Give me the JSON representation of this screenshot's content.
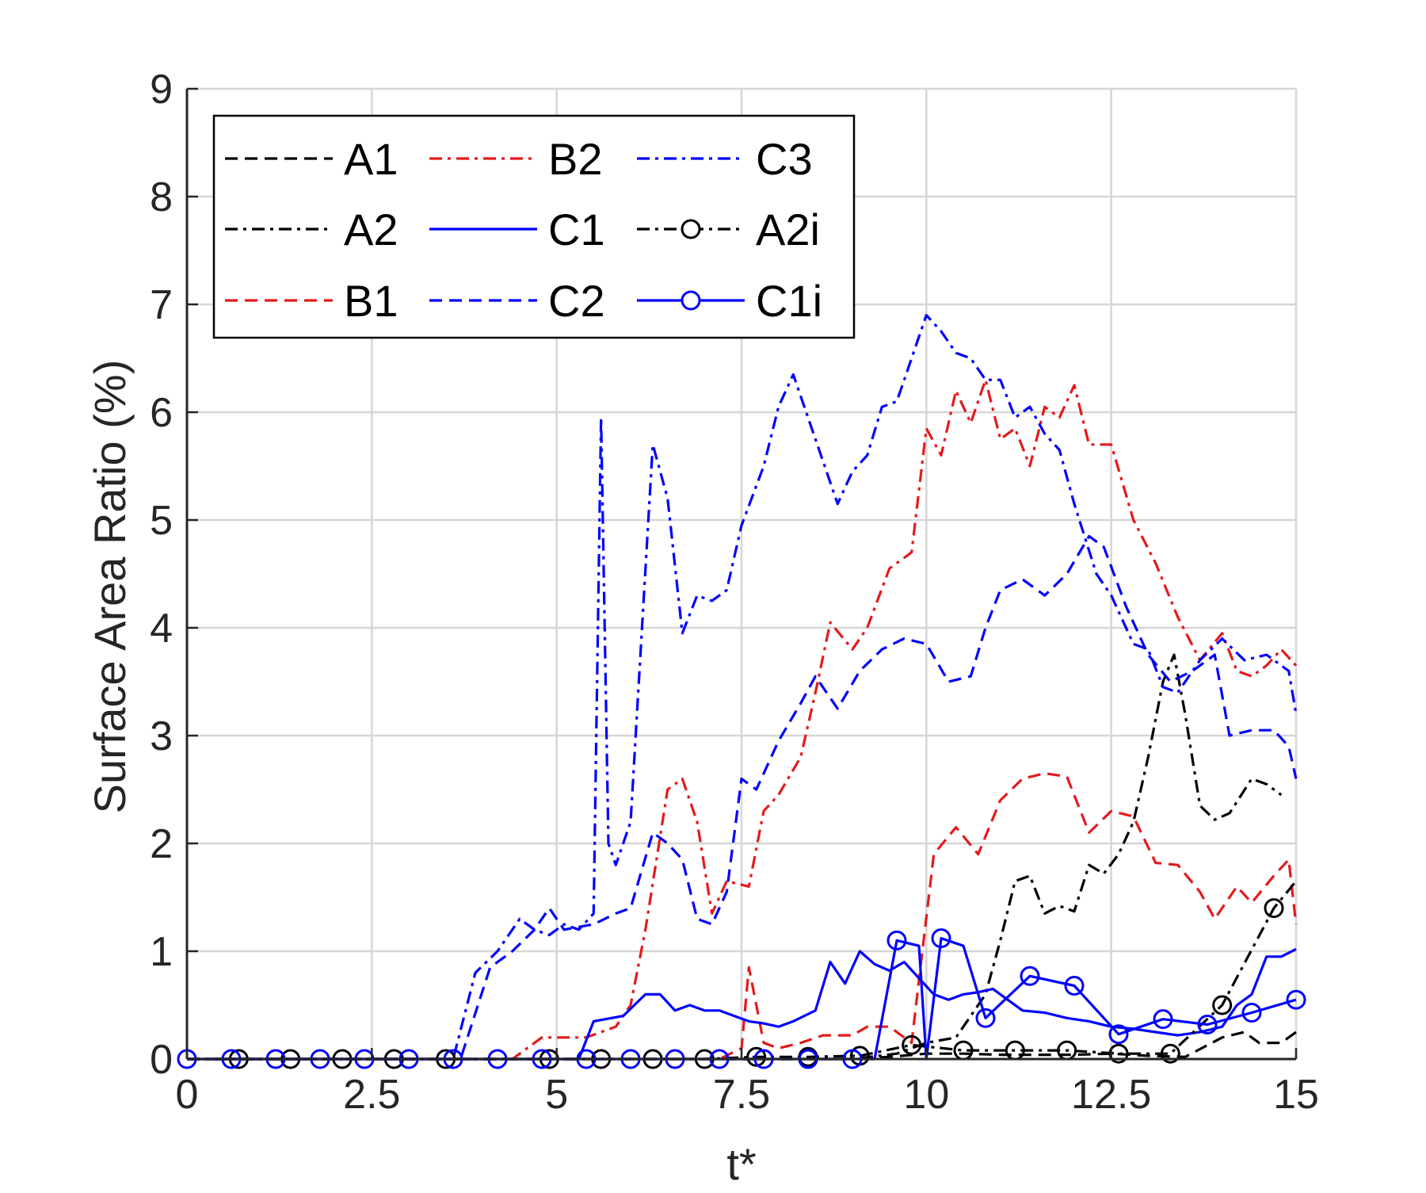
{
  "chart_data": {
    "type": "line",
    "title": "",
    "xlabel": "t*",
    "ylabel": "Surface Area Ratio (%)",
    "xlim": [
      0,
      15
    ],
    "ylim": [
      0,
      9
    ],
    "xticks": [
      "0",
      "2.5",
      "5",
      "7.5",
      "10",
      "12.5",
      "15"
    ],
    "yticks": [
      "0",
      "1",
      "2",
      "3",
      "4",
      "5",
      "6",
      "7",
      "8",
      "9"
    ],
    "grid": true,
    "legend": {
      "position": "top-left",
      "columns": 3
    },
    "series": [
      {
        "name": "A1",
        "color": "#000000",
        "dash": "dashed",
        "marker": "none",
        "x": [
          0,
          9,
          9.5,
          10,
          10.5,
          11,
          11.5,
          12,
          12.5,
          13,
          13.5,
          14,
          14.3,
          14.5,
          14.8,
          15
        ],
        "y": [
          0,
          0,
          0.02,
          0.05,
          0.05,
          0.04,
          0.04,
          0.04,
          0.05,
          0.03,
          0.02,
          0.2,
          0.25,
          0.15,
          0.15,
          0.25
        ]
      },
      {
        "name": "A2",
        "color": "#000000",
        "dash": "dashdot",
        "marker": "none",
        "x": [
          0,
          9,
          9.6,
          10,
          10.4,
          10.8,
          11,
          11.2,
          11.4,
          11.6,
          11.8,
          12,
          12.2,
          12.4,
          12.6,
          12.8,
          13,
          13.2,
          13.35,
          13.5,
          13.7,
          13.9,
          14.1,
          14.4,
          14.6,
          14.8
        ],
        "y": [
          0,
          0,
          0.05,
          0.15,
          0.2,
          0.6,
          1.1,
          1.65,
          1.7,
          1.35,
          1.42,
          1.37,
          1.8,
          1.72,
          1.9,
          2.2,
          2.8,
          3.5,
          3.75,
          3.2,
          2.35,
          2.22,
          2.28,
          2.6,
          2.55,
          2.45
        ]
      },
      {
        "name": "B1",
        "color": "#e41a1c",
        "dash": "dashed",
        "marker": "none",
        "x": [
          0,
          7.2,
          7.5,
          7.6,
          7.7,
          7.8,
          8,
          8.3,
          8.6,
          9,
          9.2,
          9.5,
          9.8,
          10.1,
          10.4,
          10.7,
          11,
          11.3,
          11.6,
          11.9,
          12.2,
          12.5,
          12.8,
          13.1,
          13.4,
          13.7,
          13.9,
          14.2,
          14.4,
          14.7,
          14.9,
          15
        ],
        "y": [
          0,
          0,
          0.1,
          0.85,
          0.5,
          0.15,
          0.1,
          0.15,
          0.22,
          0.22,
          0.3,
          0.3,
          0.15,
          1.9,
          2.15,
          1.9,
          2.4,
          2.6,
          2.65,
          2.62,
          2.1,
          2.3,
          2.25,
          1.82,
          1.8,
          1.55,
          1.3,
          1.6,
          1.45,
          1.7,
          1.85,
          1.25
        ]
      },
      {
        "name": "B2",
        "color": "#e41a1c",
        "dash": "dashdot",
        "marker": "none",
        "x": [
          0,
          4.4,
          4.8,
          5.0,
          5.4,
          5.8,
          6.0,
          6.2,
          6.5,
          6.7,
          6.9,
          7.1,
          7.3,
          7.6,
          7.8,
          8.0,
          8.3,
          8.5,
          8.7,
          9.0,
          9.2,
          9.5,
          9.8,
          10.0,
          10.2,
          10.4,
          10.6,
          10.8,
          11.0,
          11.2,
          11.4,
          11.6,
          11.8,
          12.0,
          12.2,
          12.5,
          12.8,
          13.1,
          13.4,
          13.7,
          14.0,
          14.2,
          14.4,
          14.6,
          14.8,
          15.0
        ],
        "y": [
          0,
          0,
          0.2,
          0.2,
          0.2,
          0.3,
          0.5,
          1.2,
          2.5,
          2.6,
          2.2,
          1.35,
          1.65,
          1.6,
          2.3,
          2.45,
          2.8,
          3.4,
          4.05,
          3.8,
          4.0,
          4.55,
          4.7,
          5.85,
          5.6,
          6.2,
          5.9,
          6.3,
          5.75,
          5.85,
          5.5,
          6.05,
          5.95,
          6.25,
          5.7,
          5.7,
          5.0,
          4.6,
          4.1,
          3.7,
          3.95,
          3.6,
          3.55,
          3.65,
          3.8,
          3.65
        ]
      },
      {
        "name": "C1",
        "color": "#0000ff",
        "dash": "solid",
        "marker": "none",
        "x": [
          0,
          5.3,
          5.5,
          5.9,
          6.2,
          6.4,
          6.6,
          6.8,
          7.0,
          7.2,
          7.4,
          7.6,
          7.8,
          8.0,
          8.2,
          8.5,
          8.7,
          8.9,
          9.1,
          9.3,
          9.5,
          9.7,
          9.9,
          10.1,
          10.3,
          10.5,
          10.7,
          10.9,
          11.1,
          11.3,
          11.6,
          11.9,
          12.2,
          12.5,
          12.8,
          13.1,
          13.4,
          13.7,
          14.0,
          14.2,
          14.4,
          14.6,
          14.8,
          15.0
        ],
        "y": [
          0,
          0,
          0.35,
          0.4,
          0.6,
          0.6,
          0.45,
          0.5,
          0.45,
          0.45,
          0.4,
          0.35,
          0.33,
          0.3,
          0.35,
          0.45,
          0.9,
          0.7,
          1.0,
          0.88,
          0.82,
          0.9,
          0.75,
          0.6,
          0.55,
          0.6,
          0.62,
          0.65,
          0.55,
          0.45,
          0.43,
          0.38,
          0.35,
          0.3,
          0.28,
          0.25,
          0.22,
          0.25,
          0.3,
          0.5,
          0.6,
          0.95,
          0.95,
          1.02
        ]
      },
      {
        "name": "C2",
        "color": "#0000ff",
        "dash": "dashed",
        "marker": "none",
        "x": [
          0,
          3.7,
          4.1,
          4.4,
          4.7,
          4.9,
          5.1,
          5.5,
          5.8,
          6.0,
          6.3,
          6.5,
          6.7,
          6.9,
          7.1,
          7.3,
          7.5,
          7.7,
          8.0,
          8.3,
          8.5,
          8.8,
          9.1,
          9.4,
          9.7,
          10.0,
          10.3,
          10.6,
          10.8,
          11.0,
          11.3,
          11.6,
          11.9,
          12.2,
          12.4,
          12.7,
          13.0,
          13.3,
          13.6,
          13.9,
          14.1,
          14.4,
          14.7,
          14.9,
          15.0
        ],
        "y": [
          0,
          0,
          0.85,
          1.0,
          1.2,
          1.4,
          1.2,
          1.25,
          1.35,
          1.4,
          2.1,
          2.0,
          1.85,
          1.3,
          1.25,
          1.55,
          2.6,
          2.5,
          2.95,
          3.3,
          3.55,
          3.25,
          3.6,
          3.8,
          3.9,
          3.85,
          3.5,
          3.55,
          4.0,
          4.35,
          4.45,
          4.3,
          4.5,
          4.85,
          4.75,
          4.2,
          3.75,
          3.5,
          3.6,
          3.75,
          3.0,
          3.05,
          3.05,
          2.9,
          2.6
        ]
      },
      {
        "name": "C3",
        "color": "#0000ff",
        "dash": "dashdot",
        "marker": "none",
        "x": [
          0,
          3.6,
          3.9,
          4.2,
          4.5,
          4.7,
          4.9,
          5.1,
          5.3,
          5.5,
          5.6,
          5.7,
          5.8,
          6.0,
          6.3,
          6.5,
          6.7,
          6.9,
          7.1,
          7.3,
          7.5,
          7.8,
          8.0,
          8.2,
          8.5,
          8.8,
          9.0,
          9.2,
          9.4,
          9.6,
          9.8,
          10.0,
          10.2,
          10.4,
          10.6,
          10.8,
          11.0,
          11.2,
          11.4,
          11.6,
          11.8,
          12.0,
          12.3,
          12.5,
          12.8,
          13.0,
          13.2,
          13.4,
          13.7,
          14.0,
          14.3,
          14.6,
          14.9,
          15.0
        ],
        "y": [
          0,
          0,
          0.8,
          1.0,
          1.3,
          1.2,
          1.15,
          1.25,
          1.2,
          1.35,
          5.95,
          2.0,
          1.8,
          2.2,
          5.7,
          5.2,
          3.95,
          4.3,
          4.25,
          4.35,
          4.95,
          5.5,
          6.05,
          6.35,
          5.75,
          5.15,
          5.45,
          5.6,
          6.05,
          6.1,
          6.5,
          6.9,
          6.75,
          6.55,
          6.5,
          6.3,
          6.3,
          5.95,
          6.05,
          5.8,
          5.65,
          5.15,
          4.5,
          4.3,
          3.85,
          3.8,
          3.45,
          3.4,
          3.7,
          3.9,
          3.7,
          3.75,
          3.6,
          3.2
        ]
      },
      {
        "name": "A2i",
        "color": "#000000",
        "dash": "dashdot",
        "marker": "circle",
        "x": [
          0,
          0.7,
          1.4,
          2.1,
          2.8,
          3.5,
          4.9,
          5.6,
          6.3,
          7.0,
          7.7,
          8.4,
          9.1,
          9.8,
          10.5,
          11.2,
          11.9,
          12.6,
          13.3,
          14.0,
          14.7,
          15.0
        ],
        "y": [
          0,
          0,
          0,
          0,
          0,
          0,
          0,
          0,
          0,
          0,
          0.02,
          0.02,
          0.03,
          0.13,
          0.08,
          0.08,
          0.08,
          0.05,
          0.05,
          0.5,
          1.4,
          1.65
        ],
        "markers_x": [
          0.7,
          1.4,
          2.1,
          2.8,
          3.5,
          4.9,
          5.6,
          6.3,
          7.0,
          7.7,
          8.4,
          9.1,
          9.8,
          10.5,
          11.2,
          11.9,
          12.6,
          13.3,
          14.0,
          14.7
        ],
        "markers_y": [
          0,
          0,
          0,
          0,
          0,
          0,
          0,
          0,
          0,
          0.02,
          0.02,
          0.03,
          0.13,
          0.08,
          0.08,
          0.08,
          0.05,
          0.05,
          0.5,
          1.4
        ]
      },
      {
        "name": "C1i",
        "color": "#0000ff",
        "dash": "solid",
        "marker": "circle",
        "x": [
          0,
          0.6,
          1.2,
          1.8,
          2.4,
          3.0,
          3.6,
          4.2,
          4.8,
          5.4,
          6.0,
          6.6,
          7.2,
          7.8,
          8.4,
          9.0,
          9.3,
          9.6,
          9.9,
          10.0,
          10.2,
          10.5,
          10.8,
          11.4,
          12.0,
          12.6,
          13.2,
          13.8,
          14.4,
          15.0
        ],
        "y": [
          0,
          0,
          0,
          0,
          0,
          0,
          0,
          0,
          0,
          0,
          0,
          0,
          0,
          0,
          0,
          0,
          0,
          1.1,
          1.05,
          0,
          1.12,
          1.05,
          0.38,
          0.77,
          0.68,
          0.23,
          0.37,
          0.32,
          0.43,
          0.55
        ],
        "markers_x": [
          0,
          0.6,
          1.2,
          1.8,
          2.4,
          3.0,
          3.6,
          4.2,
          4.8,
          5.4,
          6.0,
          6.6,
          7.2,
          7.8,
          8.4,
          9.0,
          9.6,
          10.2,
          10.8,
          11.4,
          12.0,
          12.6,
          13.2,
          13.8,
          14.4,
          15.0
        ],
        "markers_y": [
          0,
          0,
          0,
          0,
          0,
          0,
          0,
          0,
          0,
          0,
          0,
          0,
          0,
          0,
          0,
          0,
          1.1,
          1.12,
          0.38,
          0.77,
          0.68,
          0.23,
          0.37,
          0.32,
          0.43,
          0.55
        ]
      }
    ]
  }
}
